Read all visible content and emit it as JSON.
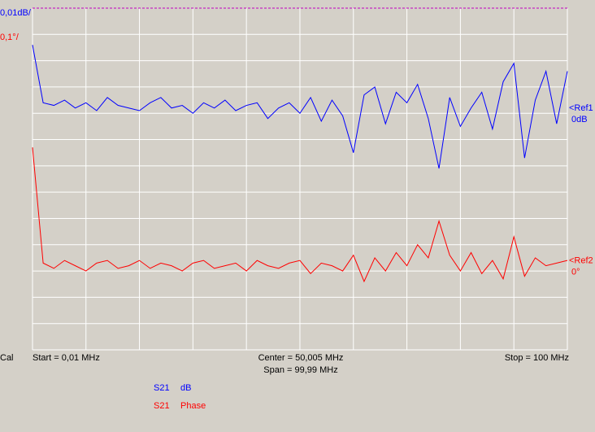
{
  "chart_data": {
    "type": "line",
    "status": "Cal",
    "x_labels": {
      "start": "Start = 0,01 MHz",
      "center": "Center = 50,005 MHz",
      "span": "Span = 99,99 MHz",
      "stop": "Stop = 100 MHz"
    },
    "x": [
      0.01,
      2,
      4,
      6,
      8,
      10,
      12,
      14,
      16,
      18,
      20,
      22,
      24,
      26,
      28,
      30,
      32,
      34,
      36,
      38,
      40,
      42,
      44,
      46,
      48,
      50,
      52,
      54,
      56,
      58,
      60,
      62,
      64,
      66,
      68,
      70,
      72,
      74,
      76,
      78,
      80,
      82,
      84,
      86,
      88,
      90,
      92,
      94,
      96,
      98,
      100
    ],
    "xlim": [
      0.01,
      100
    ],
    "xticks": [
      0.01,
      10,
      20,
      30,
      40,
      50,
      60,
      70,
      80,
      90,
      100
    ],
    "ylim": [
      -0.09,
      0.04
    ],
    "yticks": [
      -0.09,
      -0.08,
      -0.07,
      -0.06,
      -0.05,
      -0.04,
      -0.03,
      -0.02,
      -0.01,
      0,
      0.01,
      0.02,
      0.03,
      0.04
    ],
    "y2lim": [
      -0.32,
      0.98
    ],
    "grid": true,
    "series": [
      {
        "name": "S21",
        "format": "dB",
        "color": "#0000ff",
        "scale_label": "0,01dB/",
        "ref_label": "<Ref1",
        "ref_value_label": "0dB",
        "values": [
          0.026,
          0.004,
          0.003,
          0.005,
          0.002,
          0.004,
          0.001,
          0.006,
          0.003,
          0.002,
          0.001,
          0.004,
          0.006,
          0.002,
          0.003,
          0.0,
          0.004,
          0.002,
          0.005,
          0.001,
          0.003,
          0.004,
          -0.002,
          0.002,
          0.004,
          0.0,
          0.006,
          -0.003,
          0.005,
          -0.001,
          -0.015,
          0.007,
          0.01,
          -0.004,
          0.008,
          0.004,
          0.011,
          -0.002,
          -0.021,
          0.006,
          -0.005,
          0.002,
          0.008,
          -0.006,
          0.012,
          0.019,
          -0.017,
          0.005,
          0.016,
          -0.004,
          0.016
        ]
      },
      {
        "name": "S21",
        "format": "Phase",
        "color": "#ff0000",
        "axis": "y2",
        "scale_label": "0,1°/",
        "ref_label": "<Ref2",
        "ref_value_label": "0°",
        "values": [
          0.45,
          0.01,
          -0.01,
          0.02,
          0.0,
          -0.02,
          0.01,
          0.02,
          -0.01,
          0.0,
          0.02,
          -0.01,
          0.01,
          0.0,
          -0.02,
          0.01,
          0.02,
          -0.01,
          0.0,
          0.01,
          -0.02,
          0.02,
          0.0,
          -0.01,
          0.01,
          0.02,
          -0.03,
          0.01,
          0.0,
          -0.02,
          0.04,
          -0.06,
          0.03,
          -0.02,
          0.05,
          0.0,
          0.08,
          0.03,
          0.17,
          0.04,
          -0.02,
          0.05,
          -0.03,
          0.02,
          -0.05,
          0.11,
          -0.04,
          0.03,
          0.0,
          0.01,
          0.02
        ]
      }
    ]
  }
}
